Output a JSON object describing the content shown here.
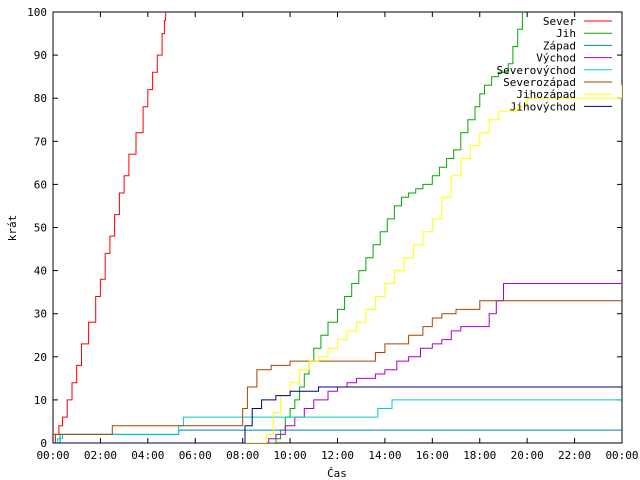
{
  "chart_data": {
    "type": "line",
    "title": "",
    "xlabel": "Čas",
    "ylabel": "krát",
    "xlim": [
      0,
      24
    ],
    "ylim": [
      0,
      100
    ],
    "x_ticks": [
      0,
      2,
      4,
      6,
      8,
      10,
      12,
      14,
      16,
      18,
      20,
      22,
      24
    ],
    "x_tick_labels": [
      "00:00",
      "02:00",
      "04:00",
      "06:00",
      "08:00",
      "10:00",
      "12:00",
      "14:00",
      "16:00",
      "18:00",
      "20:00",
      "22:00",
      "00:00"
    ],
    "y_ticks": [
      0,
      10,
      20,
      30,
      40,
      50,
      60,
      70,
      80,
      90,
      100
    ],
    "y_tick_labels": [
      "0",
      "10",
      "20",
      "30",
      "40",
      "50",
      "60",
      "70",
      "80",
      "90",
      "100"
    ],
    "grid": false,
    "legend_position": "top-right",
    "series": [
      {
        "name": "Sever",
        "color": "#ff0000",
        "x": [
          0,
          0.1,
          0.25,
          0.4,
          0.6,
          0.8,
          1.0,
          1.2,
          1.5,
          1.8,
          2.0,
          2.2,
          2.4,
          2.6,
          2.8,
          3.0,
          3.2,
          3.5,
          3.8,
          4.0,
          4.2,
          4.4,
          4.6,
          4.7,
          4.75
        ],
        "y": [
          0,
          2,
          4,
          6,
          10,
          14,
          18,
          23,
          28,
          34,
          38,
          44,
          48,
          53,
          58,
          62,
          67,
          72,
          78,
          82,
          86,
          90,
          95,
          98,
          100
        ]
      },
      {
        "name": "Jih",
        "color": "#00aa00",
        "x": [
          0,
          9.2,
          9.4,
          9.6,
          9.8,
          10.0,
          10.2,
          10.4,
          10.6,
          10.8,
          11.0,
          11.3,
          11.6,
          12.0,
          12.3,
          12.6,
          12.9,
          13.2,
          13.5,
          13.8,
          14.1,
          14.4,
          14.7,
          15.0,
          15.3,
          15.6,
          16.0,
          16.3,
          16.6,
          16.9,
          17.2,
          17.5,
          17.8,
          18.0,
          18.2,
          18.5,
          18.8,
          19.0,
          19.2,
          19.4,
          19.6,
          19.8
        ],
        "y": [
          0,
          0,
          1,
          3,
          6,
          8,
          10,
          13,
          16,
          19,
          22,
          25,
          28,
          31,
          34,
          37,
          40,
          43,
          46,
          49,
          52,
          55,
          57,
          58,
          59,
          60,
          62,
          64,
          66,
          68,
          72,
          75,
          78,
          81,
          83,
          85,
          86,
          86,
          88,
          92,
          96,
          100
        ]
      },
      {
        "name": "Západ",
        "color": "#0088aa",
        "x": [
          0,
          0.3,
          5.2,
          5.3,
          24
        ],
        "y": [
          0,
          2,
          2,
          3,
          3
        ]
      },
      {
        "name": "Východ",
        "color": "#aa00cc",
        "x": [
          0,
          8.8,
          9.1,
          9.4,
          9.8,
          10.2,
          10.6,
          11.0,
          11.6,
          12.0,
          12.4,
          12.8,
          13.2,
          13.6,
          14.0,
          14.5,
          15.0,
          15.5,
          16.0,
          16.4,
          16.8,
          17.2,
          17.6,
          18.0,
          18.4,
          18.7,
          19.0,
          24
        ],
        "y": [
          0,
          0,
          1,
          2,
          4,
          6,
          8,
          10,
          12,
          13,
          14,
          15,
          15,
          16,
          17,
          19,
          20,
          22,
          23,
          24,
          26,
          27,
          27,
          27,
          30,
          33,
          37,
          37
        ]
      },
      {
        "name": "Severovýchod",
        "color": "#00cccc",
        "x": [
          0,
          0.2,
          0.4,
          5.1,
          5.3,
          5.5,
          13.5,
          13.7,
          14.3,
          24
        ],
        "y": [
          0,
          1,
          2,
          2,
          4,
          6,
          6,
          8,
          10,
          10
        ]
      },
      {
        "name": "Severozápad",
        "color": "#aa4400",
        "x": [
          0,
          2.4,
          2.5,
          7.8,
          8.0,
          8.2,
          8.6,
          9.2,
          10.0,
          11.0,
          13.0,
          13.6,
          14.0,
          14.4,
          15.0,
          15.6,
          16.0,
          16.4,
          17.0,
          18.0,
          24
        ],
        "y": [
          2,
          2,
          4,
          4,
          8,
          13,
          17,
          18,
          19,
          19,
          19,
          21,
          23,
          23,
          25,
          27,
          29,
          30,
          31,
          33,
          33
        ]
      },
      {
        "name": "Jihozápad",
        "color": "#ffff00",
        "x": [
          0,
          8.8,
          9.0,
          9.3,
          9.6,
          10.0,
          10.4,
          10.8,
          11.2,
          11.6,
          12.0,
          12.4,
          12.8,
          13.2,
          13.6,
          14.0,
          14.4,
          14.8,
          15.2,
          15.6,
          16.0,
          16.4,
          16.8,
          17.2,
          17.6,
          18.0,
          18.4,
          18.8,
          19.2,
          19.6,
          20.0,
          24
        ],
        "y": [
          0,
          0,
          2,
          7,
          11,
          14,
          17,
          19,
          20,
          22,
          24,
          26,
          28,
          31,
          34,
          37,
          40,
          43,
          46,
          49,
          52,
          57,
          62,
          66,
          69,
          72,
          75,
          77,
          77,
          78,
          80,
          83
        ]
      },
      {
        "name": "Jihovýchod",
        "color": "#000088",
        "x": [
          0,
          7.9,
          8.1,
          8.4,
          8.8,
          9.4,
          10.0,
          10.6,
          11.2,
          12.0,
          12.5,
          14.0,
          16.0,
          18.0,
          24
        ],
        "y": [
          0,
          0,
          4,
          8,
          10,
          11,
          12,
          12,
          13,
          13,
          13,
          13,
          13,
          13,
          13
        ]
      }
    ]
  }
}
